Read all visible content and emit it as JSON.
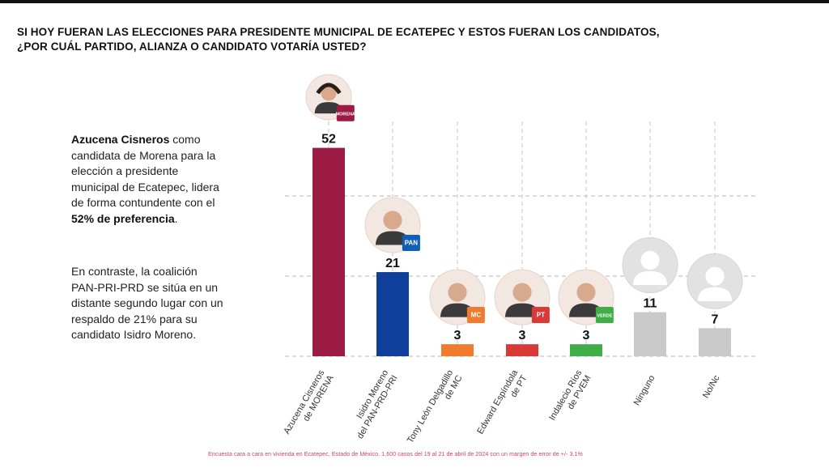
{
  "question": {
    "line1": "SI HOY FUERAN LAS ELECCIONES PARA PRESIDENTE MUNICIPAL DE ECATEPEC Y ESTOS FUERAN LOS CANDIDATOS,",
    "line2": "¿POR CUÁL PARTIDO, ALIANZA O CANDIDATO VOTARÍA USTED?"
  },
  "commentary": {
    "p1_name": "Azucena Cisneros",
    "p1_a": " como candidata de Morena para la elección a presidente municipal de Ecatepec, lidera de forma contundente con el ",
    "p1_pct": "52% de preferencia",
    "p1_end": ".",
    "p2": "En contraste, la coalición PAN-PRI-PRD se sitúa en un distante segundo lugar con un respaldo de 21% para su candidato Isidro Moreno."
  },
  "chart_data": {
    "type": "bar",
    "title": "SI HOY FUERAN LAS ELECCIONES PARA PRESIDENTE MUNICIPAL DE ECATEPEC Y ESTOS FUERAN LOS CANDIDATOS, ¿POR CUÁL PARTIDO, ALIANZA O CANDIDATO VOTARÍA USTED?",
    "xlabel": "",
    "ylabel": "",
    "ylim": [
      0,
      60
    ],
    "grid": true,
    "categories": [
      [
        "Azucena Cisneros",
        "de MORENA"
      ],
      [
        "Isidro Moreno",
        "del PAN-PRD-PRI"
      ],
      [
        "Tony León Delgadillo",
        "de MC"
      ],
      [
        "Edward Espíndola",
        "de PT"
      ],
      [
        "Indalecio Ríos",
        "de PVEM"
      ],
      [
        "Ninguno"
      ],
      [
        "No/Nc"
      ]
    ],
    "values": [
      52,
      21,
      3,
      3,
      3,
      11,
      7
    ],
    "colors": [
      "#9b1b45",
      "#0f3f9a",
      "#f07a2e",
      "#d93a37",
      "#3fae49",
      "#c9c9c9",
      "#c9c9c9"
    ],
    "badges": [
      "MORENA",
      "PAN",
      "MC",
      "PT",
      "VERDE",
      "",
      ""
    ],
    "badge_colors": [
      "#9b1b45",
      "#0f5fb5",
      "#f07a2e",
      "#d93a37",
      "#3fae49",
      "",
      ""
    ]
  },
  "footnote": "Encuesta cara a cara en vivienda en Ecatepec, Estado de México. 1,600 casos del 19 al 21 de abril de 2024 con un margen de error de +/- 3.1%"
}
